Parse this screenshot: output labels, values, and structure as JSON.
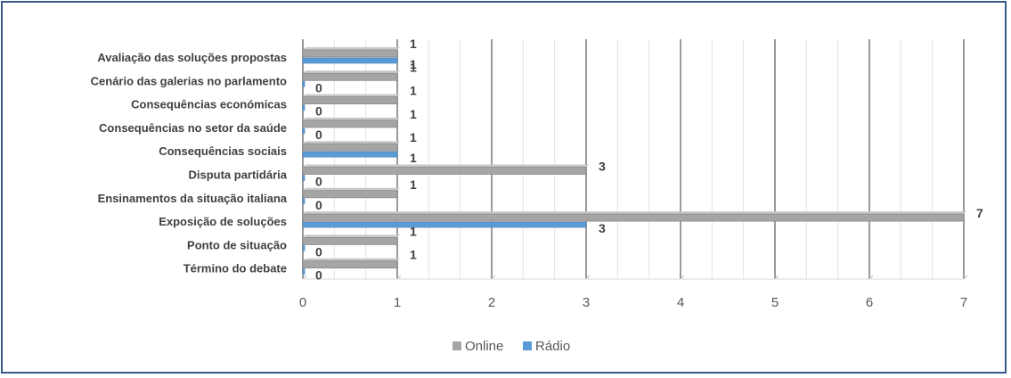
{
  "chart_data": {
    "type": "bar",
    "orientation": "horizontal",
    "categories": [
      "Avaliação das soluções propostas",
      "Cenário das galerias no parlamento",
      "Consequências económicas",
      "Consequências no setor da saúde",
      "Consequências sociais",
      "Disputa partidária",
      "Ensinamentos da situação italiana",
      "Exposição de soluções",
      "Ponto de situação",
      "Término do debate"
    ],
    "series": [
      {
        "name": "Online",
        "color": "#a5a5a5",
        "values": [
          1,
          1,
          1,
          1,
          1,
          3,
          1,
          7,
          1,
          1
        ]
      },
      {
        "name": "Rádio",
        "color": "#5b9bd5",
        "values": [
          1,
          0,
          0,
          0,
          1,
          0,
          0,
          3,
          0,
          0
        ]
      }
    ],
    "x_ticks": [
      "0",
      "1",
      "2",
      "3",
      "4",
      "5",
      "6",
      "7"
    ],
    "xlim": [
      0,
      7
    ],
    "grid": true,
    "legend": "bottom",
    "title": "",
    "xlabel": "",
    "ylabel": ""
  }
}
